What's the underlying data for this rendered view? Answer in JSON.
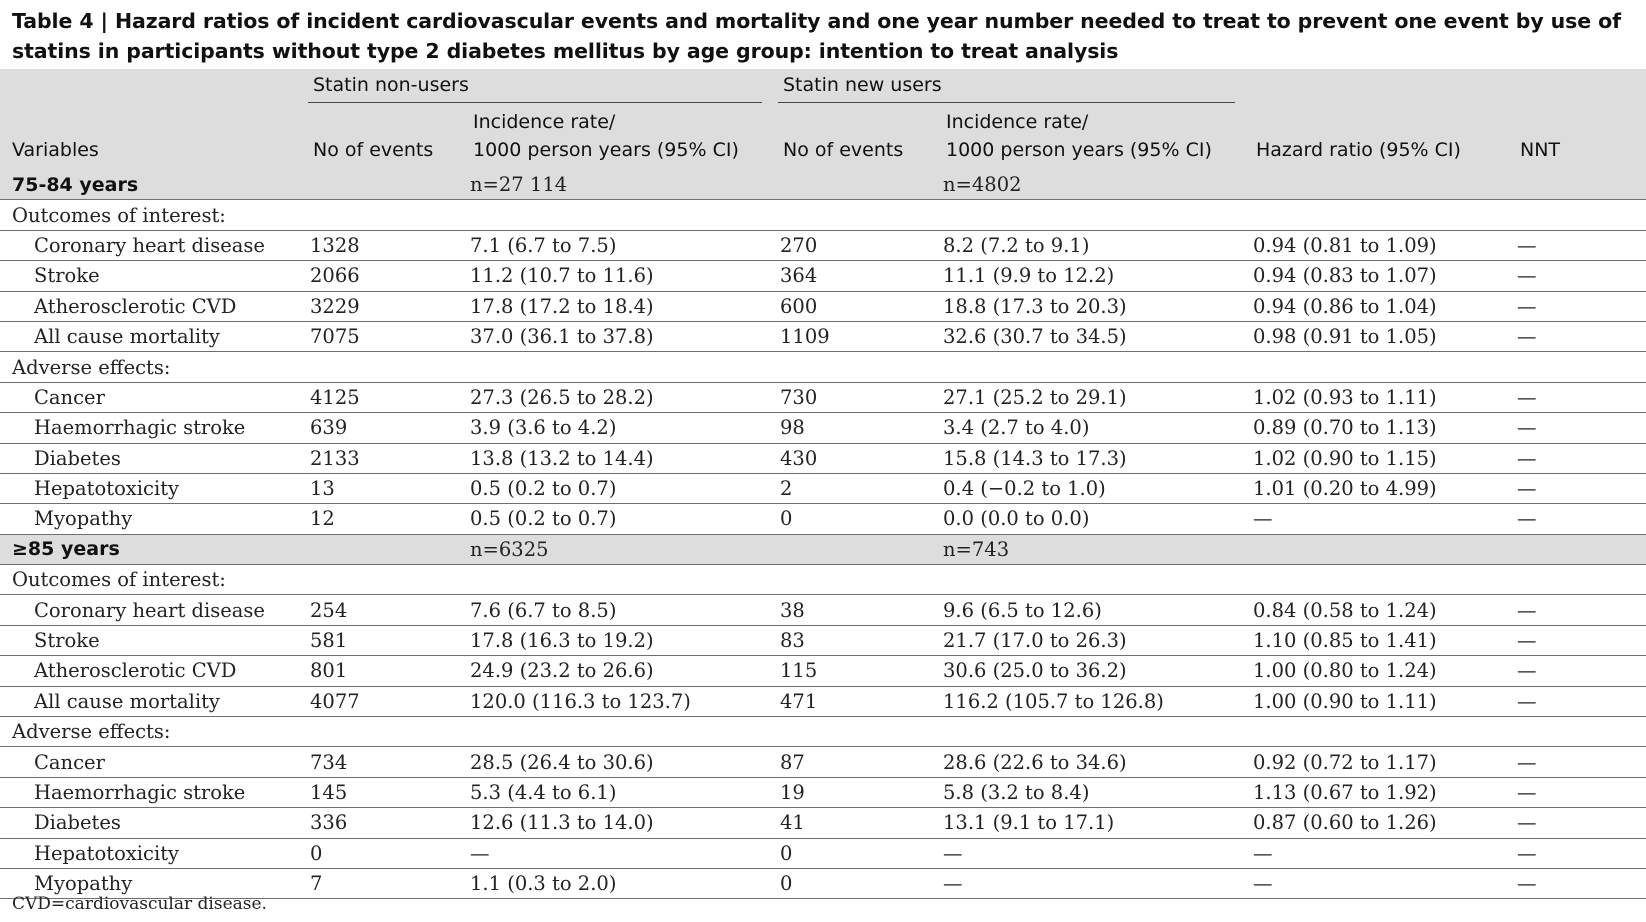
{
  "title": "Table 4 | Hazard ratios of incident cardiovascular events and mortality and one year number needed to treat to prevent one event by use of statins in participants without type 2 diabetes mellitus by age group: intention to treat analysis",
  "header": {
    "group_nonusers": "Statin non-users",
    "group_newusers": "Statin new users",
    "variables": "Variables",
    "no_events_1": "No of events",
    "rate_1_line1": "Incidence rate/",
    "rate_1_line2": "1000 person years (95% CI)",
    "no_events_2": "No of events",
    "rate_2_line1": "Incidence rate/",
    "rate_2_line2": "1000 person years (95% CI)",
    "hazard_ratio": "Hazard ratio (95% CI)",
    "nnt": "NNT"
  },
  "rows": [
    {
      "type": "group",
      "cells": [
        "75-84 years",
        "",
        "n=27 114",
        "",
        "n=4802",
        "",
        ""
      ]
    },
    {
      "type": "section",
      "cells": [
        "Outcomes of interest:",
        "",
        "",
        "",
        "",
        "",
        ""
      ]
    },
    {
      "type": "item",
      "cells": [
        "Coronary heart disease",
        "1328",
        "7.1 (6.7 to 7.5)",
        "270",
        "8.2 (7.2 to 9.1)",
        "0.94 (0.81 to 1.09)",
        "—"
      ]
    },
    {
      "type": "item",
      "cells": [
        "Stroke",
        "2066",
        "11.2 (10.7 to 11.6)",
        "364",
        "11.1 (9.9 to 12.2)",
        "0.94 (0.83 to 1.07)",
        "—"
      ]
    },
    {
      "type": "item",
      "cells": [
        "Atherosclerotic CVD",
        "3229",
        "17.8 (17.2 to 18.4)",
        "600",
        "18.8 (17.3 to 20.3)",
        "0.94 (0.86 to 1.04)",
        "—"
      ]
    },
    {
      "type": "item",
      "cells": [
        "All cause mortality",
        "7075",
        "37.0 (36.1 to 37.8)",
        "1109",
        "32.6 (30.7 to 34.5)",
        "0.98 (0.91 to 1.05)",
        "—"
      ]
    },
    {
      "type": "section",
      "cells": [
        "Adverse effects:",
        "",
        "",
        "",
        "",
        "",
        ""
      ]
    },
    {
      "type": "item",
      "cells": [
        "Cancer",
        "4125",
        "27.3 (26.5 to 28.2)",
        "730",
        "27.1 (25.2 to 29.1)",
        "1.02 (0.93 to 1.11)",
        "—"
      ]
    },
    {
      "type": "item",
      "cells": [
        "Haemorrhagic stroke",
        "639",
        "3.9 (3.6 to 4.2)",
        "98",
        "3.4 (2.7 to 4.0)",
        "0.89 (0.70 to 1.13)",
        "—"
      ]
    },
    {
      "type": "item",
      "cells": [
        "Diabetes",
        "2133",
        "13.8 (13.2 to 14.4)",
        "430",
        "15.8 (14.3 to 17.3)",
        "1.02 (0.90 to 1.15)",
        "—"
      ]
    },
    {
      "type": "item",
      "cells": [
        "Hepatotoxicity",
        "13",
        "0.5 (0.2 to 0.7)",
        "2",
        "0.4 (−0.2 to 1.0)",
        "1.01 (0.20 to 4.99)",
        "—"
      ]
    },
    {
      "type": "item",
      "cells": [
        "Myopathy",
        "12",
        "0.5 (0.2 to 0.7)",
        "0",
        "0.0 (0.0 to 0.0)",
        "—",
        "—"
      ]
    },
    {
      "type": "group",
      "cells": [
        "≥85 years",
        "",
        "n=6325",
        "",
        "n=743",
        "",
        ""
      ]
    },
    {
      "type": "section",
      "cells": [
        "Outcomes of interest:",
        "",
        "",
        "",
        "",
        "",
        ""
      ]
    },
    {
      "type": "item",
      "cells": [
        "Coronary heart disease",
        "254",
        "7.6 (6.7 to 8.5)",
        "38",
        "9.6 (6.5 to 12.6)",
        "0.84 (0.58 to 1.24)",
        "—"
      ]
    },
    {
      "type": "item",
      "cells": [
        "Stroke",
        "581",
        "17.8 (16.3 to 19.2)",
        "83",
        "21.7 (17.0 to 26.3)",
        "1.10 (0.85 to 1.41)",
        "—"
      ]
    },
    {
      "type": "item",
      "cells": [
        "Atherosclerotic CVD",
        "801",
        "24.9 (23.2 to 26.6)",
        "115",
        "30.6 (25.0 to 36.2)",
        "1.00 (0.80 to 1.24)",
        "—"
      ]
    },
    {
      "type": "item",
      "cells": [
        "All cause mortality",
        "4077",
        "120.0 (116.3 to 123.7)",
        "471",
        "116.2 (105.7 to 126.8)",
        "1.00 (0.90 to 1.11)",
        "—"
      ]
    },
    {
      "type": "section",
      "cells": [
        "Adverse effects:",
        "",
        "",
        "",
        "",
        "",
        ""
      ]
    },
    {
      "type": "item",
      "cells": [
        "Cancer",
        "734",
        "28.5 (26.4 to 30.6)",
        "87",
        "28.6 (22.6 to 34.6)",
        "0.92 (0.72 to 1.17)",
        "—"
      ]
    },
    {
      "type": "item",
      "cells": [
        "Haemorrhagic stroke",
        "145",
        "5.3 (4.4 to 6.1)",
        "19",
        "5.8 (3.2 to 8.4)",
        "1.13 (0.67 to 1.92)",
        "—"
      ]
    },
    {
      "type": "item",
      "cells": [
        "Diabetes",
        "336",
        "12.6 (11.3 to 14.0)",
        "41",
        "13.1 (9.1 to 17.1)",
        "0.87 (0.60 to 1.26)",
        "—"
      ]
    },
    {
      "type": "item",
      "cells": [
        "Hepatotoxicity",
        "0",
        "—",
        "0",
        "—",
        "—",
        "—"
      ]
    },
    {
      "type": "item",
      "cells": [
        "Myopathy",
        "7",
        "1.1 (0.3 to 2.0)",
        "0",
        "—",
        "—",
        "—"
      ]
    }
  ],
  "footnote": "CVD=cardiovascular disease."
}
